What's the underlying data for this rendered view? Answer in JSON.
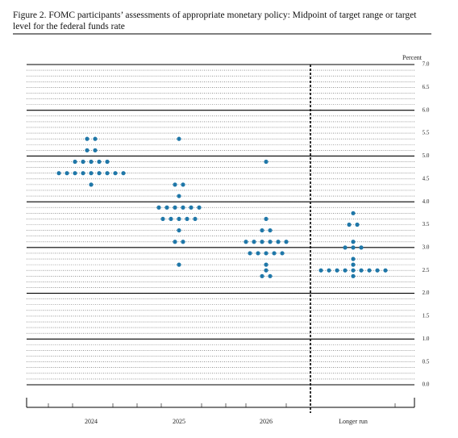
{
  "chart_data": {
    "type": "dot",
    "title": "Figure 2.  FOMC participants’ assessments of appropriate monetary policy:  Midpoint of target range or target level for the federal funds rate",
    "y_label": "Percent",
    "categories": [
      "2024",
      "2025",
      "2026",
      "Longer run"
    ],
    "color": "#1f77a8",
    "values": [
      [
        5.375,
        5.375,
        5.125,
        5.125,
        4.875,
        4.875,
        4.875,
        4.875,
        4.875,
        4.625,
        4.625,
        4.625,
        4.625,
        4.625,
        4.625,
        4.625,
        4.625,
        4.625,
        4.375
      ],
      [
        5.375,
        4.375,
        4.375,
        4.125,
        3.875,
        3.875,
        3.875,
        3.875,
        3.875,
        3.875,
        3.625,
        3.625,
        3.625,
        3.625,
        3.625,
        3.375,
        3.125,
        3.125,
        2.625
      ],
      [
        4.875,
        3.625,
        3.375,
        3.375,
        3.125,
        3.125,
        3.125,
        3.125,
        3.125,
        3.125,
        2.875,
        2.875,
        2.875,
        2.875,
        2.875,
        2.625,
        2.5,
        2.375,
        2.375
      ],
      [
        3.75,
        3.5,
        3.5,
        3.125,
        3.0,
        3.0,
        3.0,
        2.75,
        2.625,
        2.5,
        2.5,
        2.5,
        2.5,
        2.5,
        2.5,
        2.5,
        2.5,
        2.5,
        2.375
      ]
    ],
    "ylim": [
      0,
      7
    ],
    "yticks": [
      {
        "value": 0,
        "label": "0.0"
      },
      0.5,
      {
        "value": 1,
        "label": "1.0"
      },
      1.5,
      {
        "value": 2,
        "label": "2.0"
      },
      2.5,
      {
        "value": 3,
        "label": "3.0"
      },
      3.5,
      {
        "value": 4,
        "label": "4.0"
      },
      4.5,
      {
        "value": 5,
        "label": "5.0"
      },
      5.5,
      {
        "value": 6,
        "label": "6.0"
      },
      6.5,
      {
        "value": 7,
        "label": "7.0"
      }
    ],
    "grid": true
  }
}
